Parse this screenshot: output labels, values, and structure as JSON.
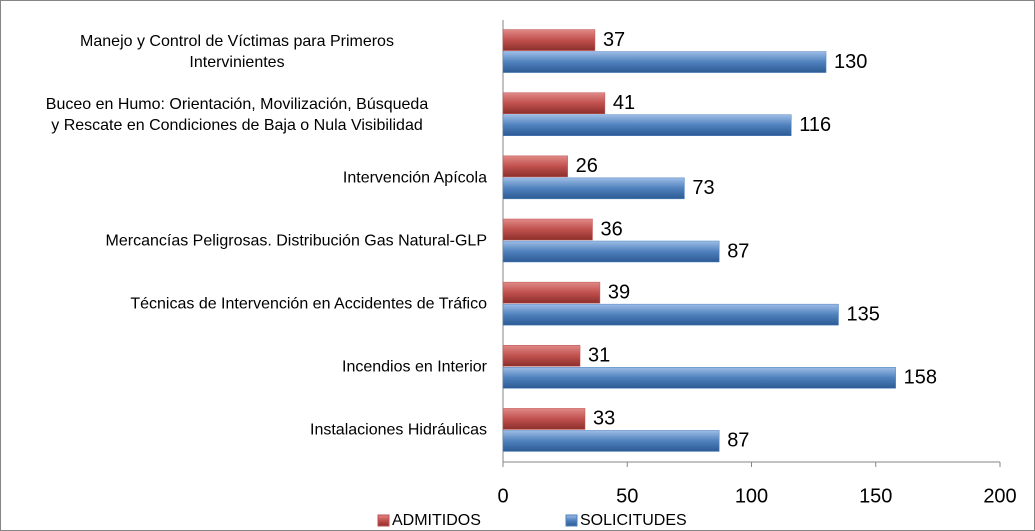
{
  "chart_data": {
    "type": "bar",
    "orientation": "horizontal",
    "categories": [
      "Manejo y Control de Víctimas para Primeros\nIntervinientes",
      "Buceo en Humo: Orientación, Movilización, Búsqueda\ny Rescate en Condiciones de Baja o Nula Visibilidad",
      "Intervención Apícola",
      "Mercancías Peligrosas. Distribución Gas Natural-GLP",
      "Técnicas de Intervención en Accidentes de Tráfico",
      "Incendios en Interior",
      "Instalaciones Hidráulicas"
    ],
    "series": [
      {
        "name": "ADMITIDOS",
        "color": "#c0504d",
        "values": [
          37,
          41,
          26,
          36,
          39,
          31,
          33
        ]
      },
      {
        "name": "SOLICITUDES",
        "color": "#4f81bd",
        "values": [
          130,
          116,
          73,
          87,
          135,
          158,
          87
        ]
      }
    ],
    "xlim": [
      0,
      200
    ],
    "xticks": [
      0,
      50,
      100,
      150,
      200
    ],
    "legend": "bottom"
  }
}
